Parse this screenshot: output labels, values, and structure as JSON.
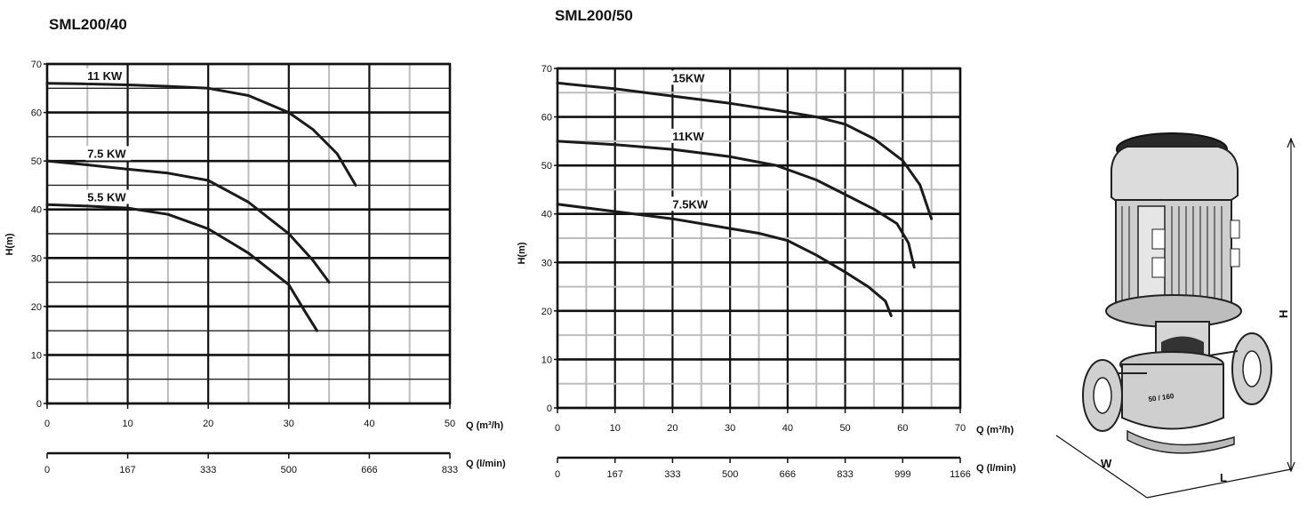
{
  "chart_data": [
    {
      "type": "line",
      "title": "SML200/40",
      "ylabel": "H(m)",
      "xlabel": "Q (m³/h)",
      "x2label": "Q (l/min)",
      "xlim": [
        0,
        50
      ],
      "ylim": [
        0,
        70
      ],
      "x_ticks": [
        0,
        10,
        20,
        30,
        40,
        50
      ],
      "x2_ticks": [
        "0",
        "167",
        "333",
        "500",
        "666",
        "833"
      ],
      "y_ticks": [
        0,
        10,
        20,
        30,
        40,
        50,
        60,
        70
      ],
      "grid": true,
      "series": [
        {
          "name": "11 KW",
          "x": [
            0,
            5,
            10,
            15,
            20,
            25,
            30,
            33,
            36,
            38.3
          ],
          "y": [
            66,
            65.9,
            65.7,
            65.4,
            65,
            63.5,
            60,
            56.5,
            51.5,
            45
          ]
        },
        {
          "name": "7.5 KW",
          "x": [
            0,
            5,
            10,
            15,
            20,
            25,
            30,
            33,
            35
          ],
          "y": [
            50,
            49.2,
            48.3,
            47.5,
            46,
            41.5,
            35,
            29.5,
            25
          ]
        },
        {
          "name": "5.5 KW",
          "x": [
            0,
            5,
            10,
            15,
            20,
            25,
            30,
            32,
            33.5
          ],
          "y": [
            41,
            40.7,
            40.3,
            39,
            36,
            31,
            24.5,
            19,
            15
          ]
        }
      ]
    },
    {
      "type": "line",
      "title": "SML200/50",
      "ylabel": "H(m)",
      "xlabel": "Q (m³/h)",
      "x2label": "Q (l/min)",
      "xlim": [
        0,
        70
      ],
      "ylim": [
        0,
        70
      ],
      "x_ticks": [
        0,
        10,
        20,
        30,
        40,
        50,
        60,
        70
      ],
      "x2_ticks": [
        "0",
        "167",
        "333",
        "500",
        "666",
        "833",
        "999",
        "1166"
      ],
      "y_ticks": [
        0,
        10,
        20,
        30,
        40,
        50,
        60,
        70
      ],
      "grid": true,
      "series": [
        {
          "name": "15KW",
          "x": [
            0,
            10,
            20,
            30,
            40,
            45,
            50,
            55,
            60,
            63,
            65
          ],
          "y": [
            67,
            65.8,
            64.3,
            62.8,
            61,
            60,
            58.5,
            55.5,
            51,
            46,
            39
          ]
        },
        {
          "name": "11KW",
          "x": [
            0,
            10,
            20,
            30,
            38,
            45,
            50,
            55,
            59,
            61,
            62
          ],
          "y": [
            55,
            54.3,
            53.3,
            51.8,
            50,
            47,
            44,
            41,
            38,
            34,
            29
          ]
        },
        {
          "name": "7.5KW",
          "x": [
            0,
            10,
            20,
            30,
            35,
            40,
            45,
            50,
            54,
            57,
            58
          ],
          "y": [
            42,
            40.5,
            39,
            37,
            36,
            34.5,
            31.5,
            28,
            25,
            22,
            19
          ]
        }
      ]
    }
  ],
  "pump_image": {
    "dimension_labels": {
      "height": "H",
      "width": "W",
      "length": "L"
    },
    "flange_text": "50 / 160"
  }
}
